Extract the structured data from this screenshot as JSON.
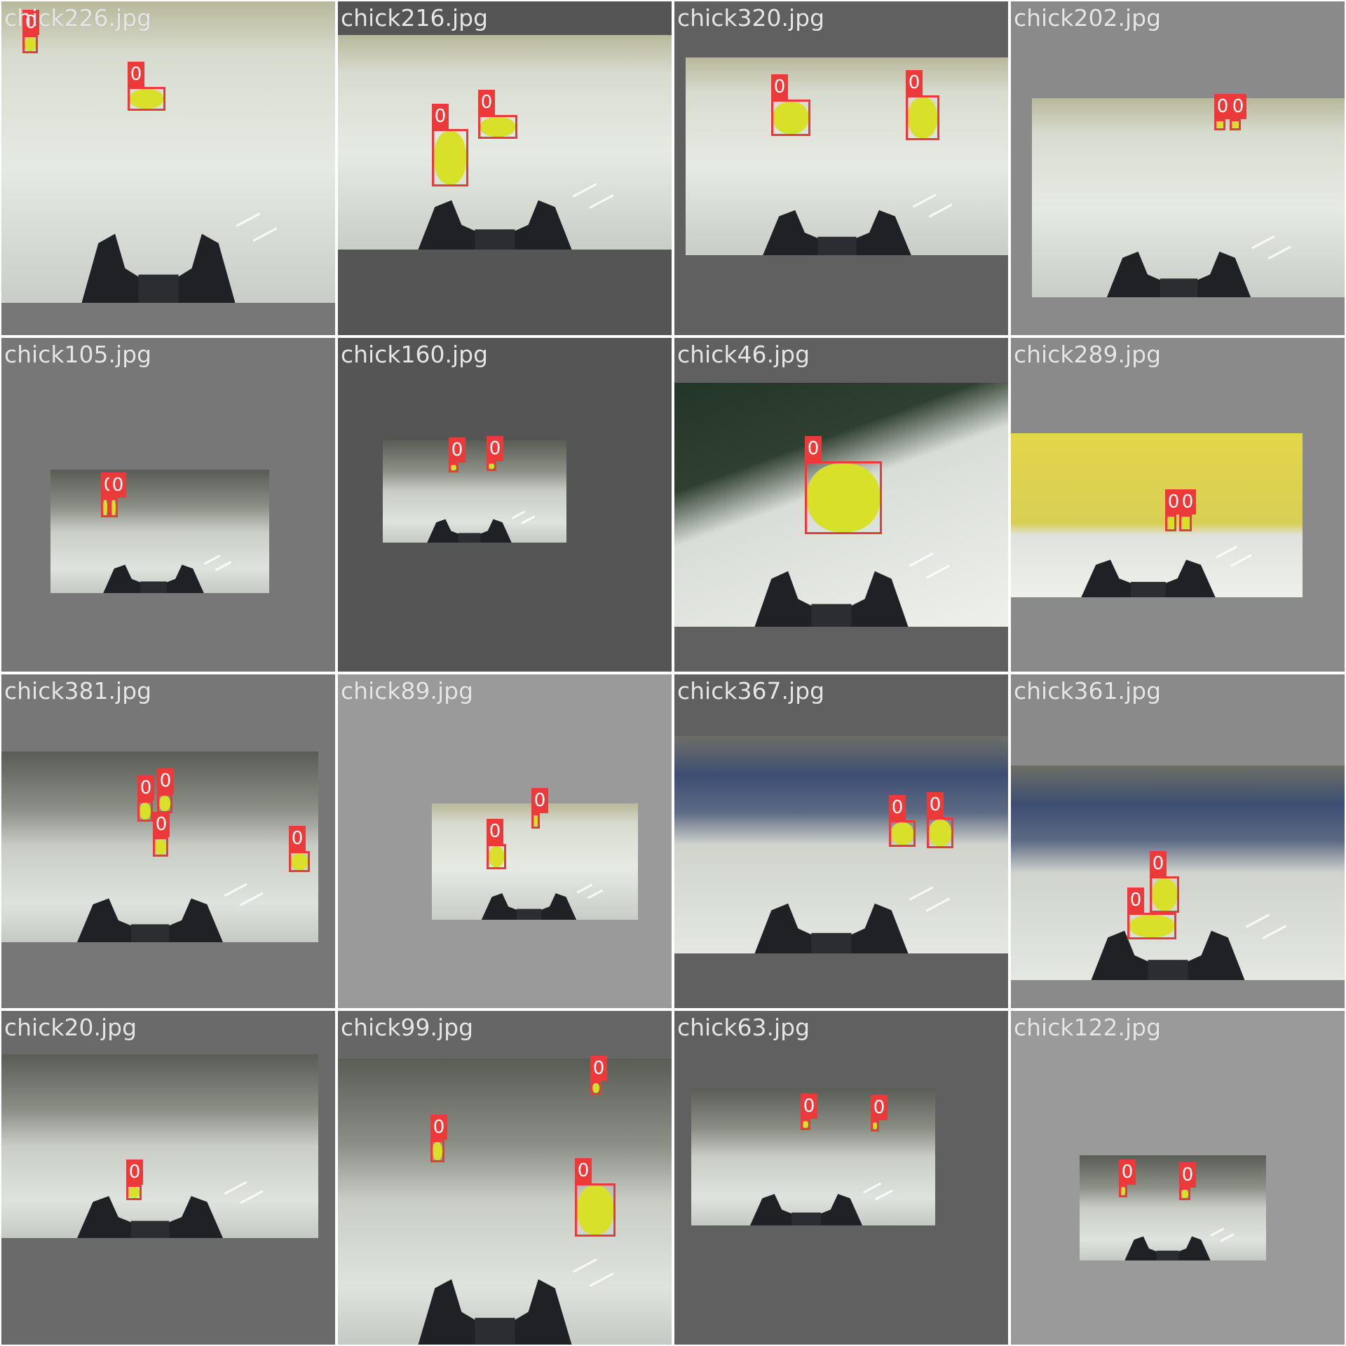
{
  "colors": {
    "box": "#ec3a3a",
    "label_text": "#ffffff",
    "filename_text": "#e6e6e6",
    "chick": "#d8e02a"
  },
  "tiles": [
    {
      "file": "chick226.jpg",
      "labels": [
        "0",
        "0"
      ]
    },
    {
      "file": "chick216.jpg",
      "labels": [
        "0",
        "0"
      ]
    },
    {
      "file": "chick320.jpg",
      "labels": [
        "0",
        "0"
      ]
    },
    {
      "file": "chick202.jpg",
      "labels": [
        "0",
        "0"
      ]
    },
    {
      "file": "chick105.jpg",
      "labels": [
        "0",
        "0"
      ]
    },
    {
      "file": "chick160.jpg",
      "labels": [
        "0",
        "0"
      ]
    },
    {
      "file": "chick46.jpg",
      "labels": [
        "0"
      ]
    },
    {
      "file": "chick289.jpg",
      "labels": [
        "0",
        "0"
      ]
    },
    {
      "file": "chick381.jpg",
      "labels": [
        "0",
        "0",
        "0",
        "0"
      ]
    },
    {
      "file": "chick89.jpg",
      "labels": [
        "0",
        "0"
      ]
    },
    {
      "file": "chick367.jpg",
      "labels": [
        "0",
        "0"
      ]
    },
    {
      "file": "chick361.jpg",
      "labels": [
        "0",
        "0"
      ]
    },
    {
      "file": "chick20.jpg",
      "labels": [
        "0"
      ]
    },
    {
      "file": "chick99.jpg",
      "labels": [
        "0",
        "0",
        "0"
      ]
    },
    {
      "file": "chick63.jpg",
      "labels": [
        "0",
        "0"
      ]
    },
    {
      "file": "chick122.jpg",
      "labels": [
        "0",
        "0"
      ]
    }
  ]
}
